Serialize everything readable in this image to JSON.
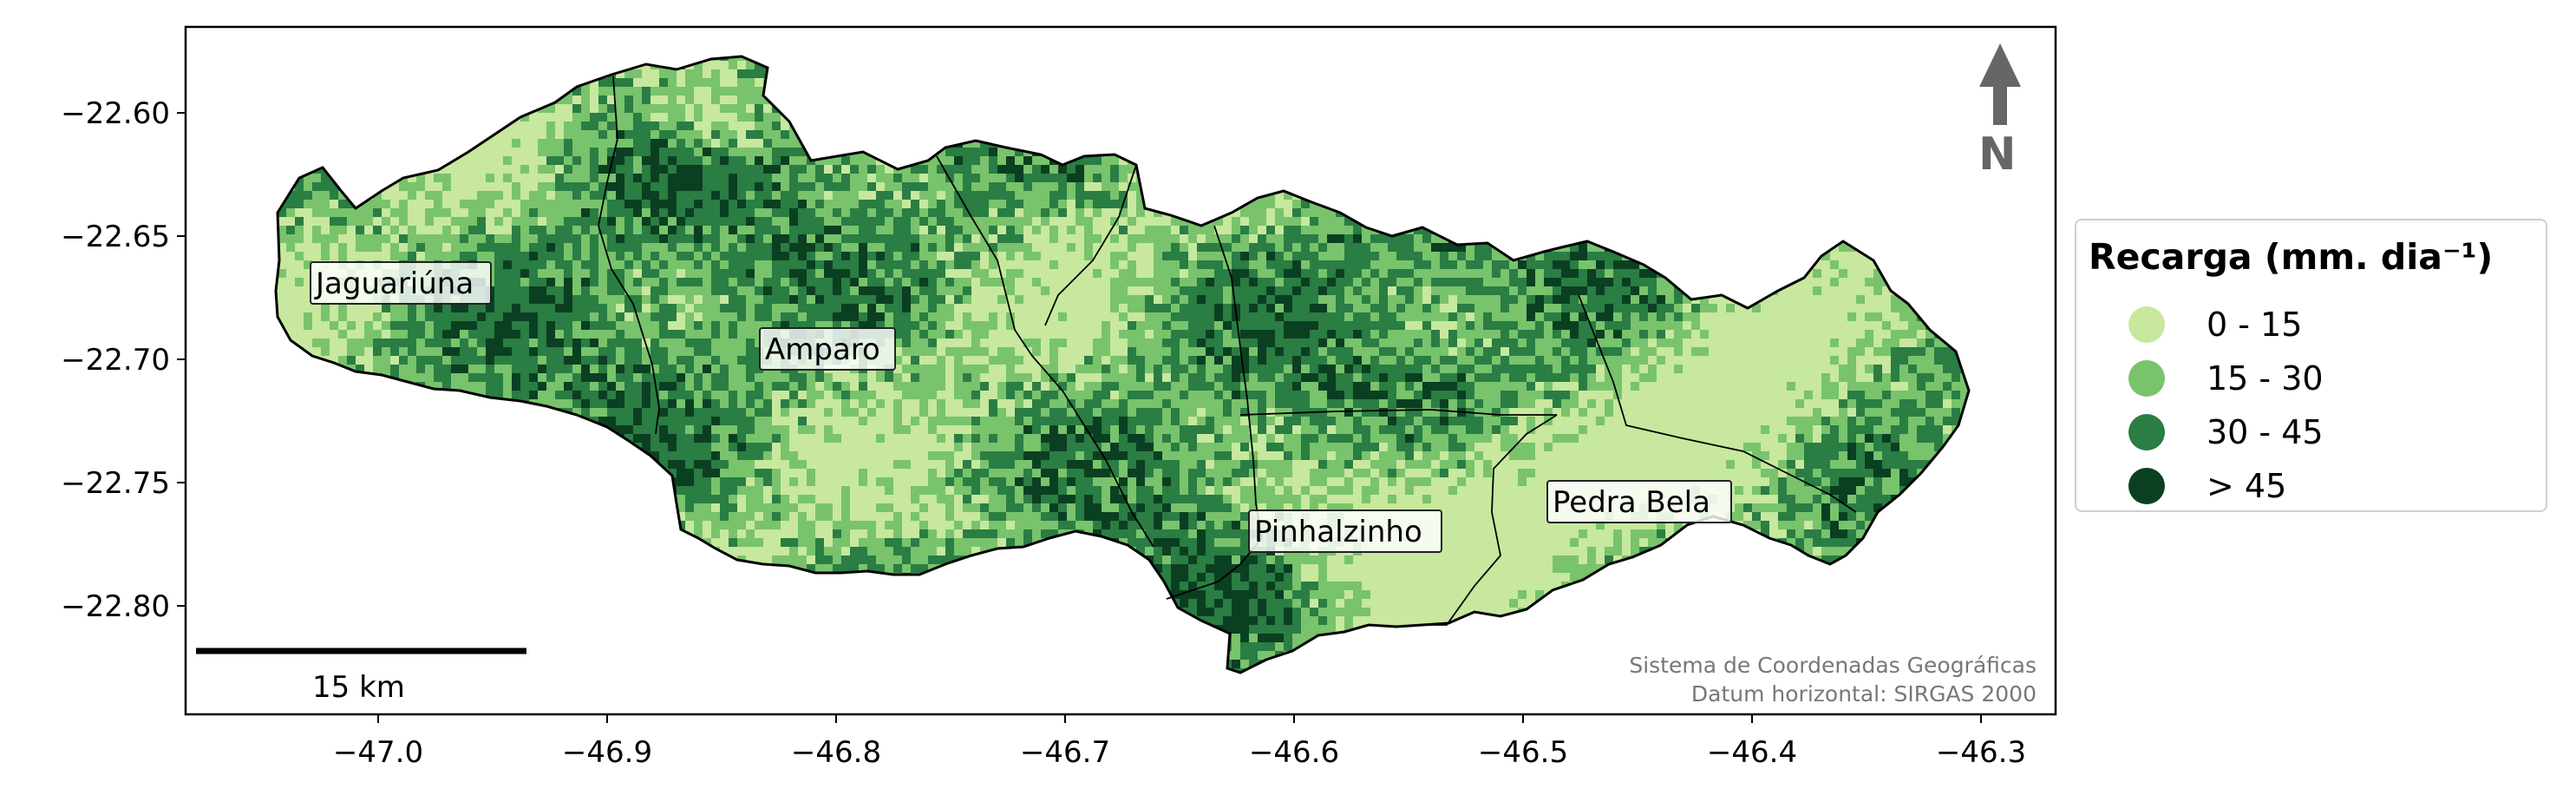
{
  "colors": {
    "class_0_15": "#c7e89e",
    "class_15_30": "#78c36c",
    "class_30_45": "#2a7d43",
    "class_gt_45": "#0b3f21",
    "boundary": "#000000",
    "north_arrow": "#666666"
  },
  "legend": {
    "title": "Recarga (mm. dia⁻¹)",
    "items": [
      {
        "label": "0 - 15",
        "color": "#c7e89e"
      },
      {
        "label": "15 - 30",
        "color": "#78c36c"
      },
      {
        "label": "30 - 45",
        "color": "#2a7d43"
      },
      {
        "label": "> 45",
        "color": "#0b3f21"
      }
    ]
  },
  "axes": {
    "x_ticks": [
      "−47.0",
      "−46.9",
      "−46.8",
      "−46.7",
      "−46.6",
      "−46.5",
      "−46.4",
      "−46.3"
    ],
    "y_ticks": [
      "−22.60",
      "−22.65",
      "−22.70",
      "−22.75",
      "−22.80"
    ]
  },
  "places": {
    "jaguariuna": "Jaguariúna",
    "amparo": "Amparo",
    "pinhalzinho": "Pinhalzinho",
    "pedra_bela": "Pedra Bela"
  },
  "north": {
    "label": "N"
  },
  "scale_bar": {
    "label": "15 km"
  },
  "credits": {
    "line1": "Sistema de Coordenadas Geográficas",
    "line2": "Datum horizontal: SIRGAS 2000"
  }
}
